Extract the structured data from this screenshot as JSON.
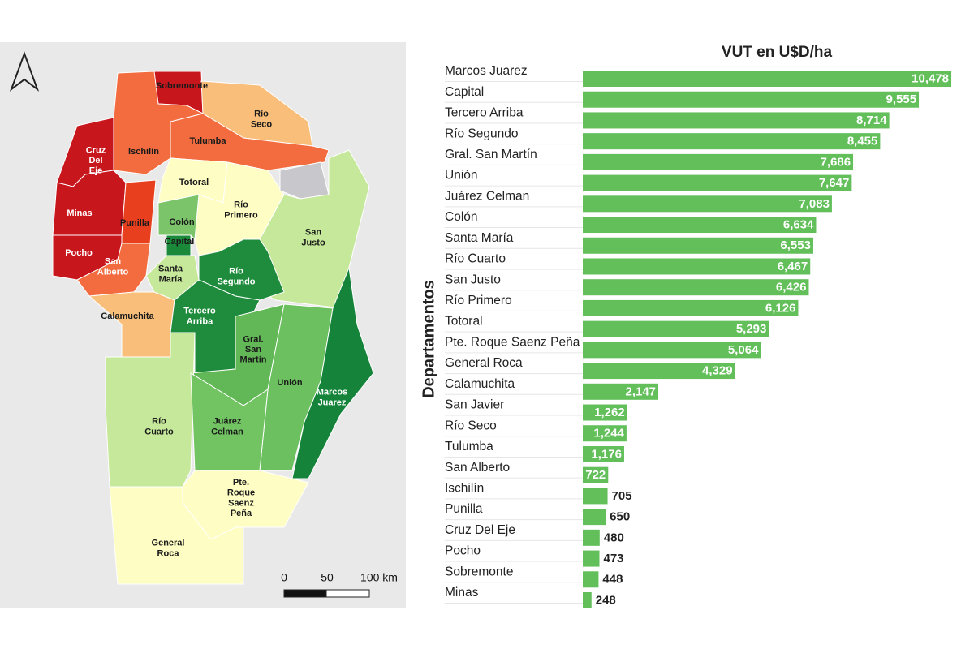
{
  "chart_data": {
    "type": "hbar",
    "title": "VUT en U$D/ha",
    "y_label": "Departamentos",
    "categories": [
      "Marcos Juarez",
      "Capital",
      "Tercero Arriba",
      "Río Segundo",
      "Gral. San Martín",
      "Unión",
      "Juárez Celman",
      "Colón",
      "Santa María",
      "Río Cuarto",
      "San Justo",
      "Río Primero",
      "Totoral",
      "Pte. Roque Saenz Peña",
      "General Roca",
      "Calamuchita",
      "San Javier",
      "Río Seco",
      "Tulumba",
      "San Alberto",
      "Ischilín",
      "Punilla",
      "Cruz Del Eje",
      "Pocho",
      "Sobremonte",
      "Minas"
    ],
    "values": [
      10478,
      9555,
      8714,
      8455,
      7686,
      7647,
      7083,
      6634,
      6553,
      6467,
      6426,
      6126,
      5293,
      5064,
      4329,
      2147,
      1262,
      1244,
      1176,
      722,
      705,
      650,
      480,
      473,
      448,
      248
    ],
    "value_labels": [
      "10,478",
      "9,555",
      "8,714",
      "8,455",
      "7,686",
      "7,647",
      "7,083",
      "6,634",
      "6,553",
      "6,467",
      "6,426",
      "6,126",
      "5,293",
      "5,064",
      "4,329",
      "2,147",
      "1,262",
      "1,244",
      "1,176",
      "722",
      "705",
      "650",
      "480",
      "473",
      "448",
      "248"
    ],
    "color": "#62bf5a",
    "xlim": [
      0,
      10500
    ]
  },
  "map": {
    "departments": [
      "Sobremonte",
      "Río Seco",
      "Tulumba",
      "Ischilín",
      "Cruz Del Eje",
      "Minas",
      "Punilla",
      "Pocho",
      "San Alberto",
      "Totoral",
      "Río Primero",
      "Colón",
      "Capital",
      "San Justo",
      "Santa María",
      "Río Segundo",
      "Calamuchita",
      "Tercero Arriba",
      "Gral. San Martín",
      "Unión",
      "Marcos Juarez",
      "Río Cuarto",
      "Juárez Celman",
      "Pte. Roque Saenz Peña",
      "General Roca"
    ],
    "scale": [
      "0",
      "50",
      "100 km"
    ]
  }
}
